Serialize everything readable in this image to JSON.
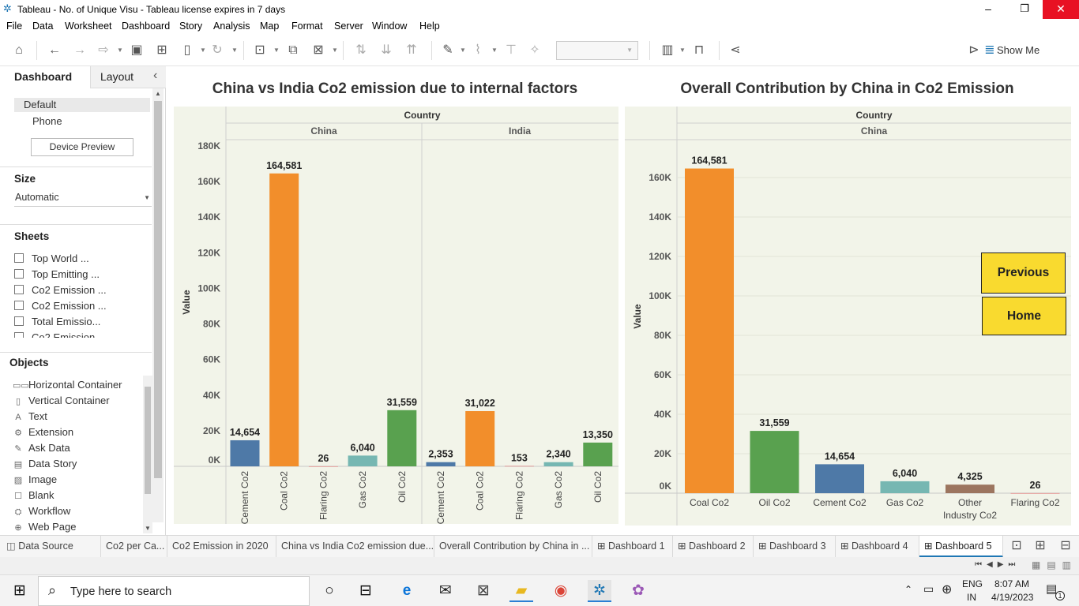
{
  "window": {
    "title": "Tableau - No. of Unique Visu - Tableau license expires in 7 days",
    "minimize": "–",
    "restore": "❐",
    "close": "✕"
  },
  "menu": [
    "File",
    "Data",
    "Worksheet",
    "Dashboard",
    "Story",
    "Analysis",
    "Map",
    "Format",
    "Server",
    "Window",
    "Help"
  ],
  "toolbar": {
    "show_me": "Show Me"
  },
  "left_pane": {
    "tab_dashboard": "Dashboard",
    "tab_layout": "Layout",
    "collapse": "‹",
    "device_default": "Default",
    "device_phone": "Phone",
    "device_preview_button": "Device Preview",
    "size_heading": "Size",
    "size_value": "Automatic",
    "sheets_heading": "Sheets",
    "sheets": [
      "Top World ...",
      "Top Emitting ...",
      "Co2 Emission ...",
      "Co2 Emission ...",
      "Total Emissio...",
      "Co2 Emission ..."
    ],
    "objects_heading": "Objects",
    "objects": [
      {
        "icon": "horizontal-container-icon",
        "glyph": "▭▭",
        "label": "Horizontal Container"
      },
      {
        "icon": "vertical-container-icon",
        "glyph": "▯",
        "label": "Vertical Container"
      },
      {
        "icon": "text-icon",
        "glyph": "A",
        "label": "Text"
      },
      {
        "icon": "extension-icon",
        "glyph": "⚙",
        "label": "Extension"
      },
      {
        "icon": "ask-data-icon",
        "glyph": "✎",
        "label": "Ask Data"
      },
      {
        "icon": "data-story-icon",
        "glyph": "▤",
        "label": "Data Story"
      },
      {
        "icon": "image-icon",
        "glyph": "▨",
        "label": "Image"
      },
      {
        "icon": "blank-icon",
        "glyph": "☐",
        "label": "Blank"
      },
      {
        "icon": "workflow-icon",
        "glyph": "⛭",
        "label": "Workflow"
      },
      {
        "icon": "web-page-icon",
        "glyph": "⊕",
        "label": "Web Page"
      }
    ]
  },
  "buttons": {
    "previous": "Previous",
    "home": "Home"
  },
  "chart_data": [
    {
      "type": "bar",
      "title": "China vs India Co2 emission due to internal factors",
      "column_header": "Country",
      "panes": [
        "China",
        "India"
      ],
      "ylabel": "Value",
      "ylim": [
        0,
        185000
      ],
      "yticks": [
        0,
        20000,
        40000,
        60000,
        80000,
        100000,
        120000,
        140000,
        160000,
        180000
      ],
      "ytick_labels": [
        "0K",
        "20K",
        "40K",
        "60K",
        "80K",
        "100K",
        "120K",
        "140K",
        "160K",
        "180K"
      ],
      "categories": [
        "Cement Co2",
        "Coal Co2",
        "Flaring Co2",
        "Gas Co2",
        "Oil Co2"
      ],
      "series": [
        {
          "values": [
            14654,
            164581,
            26,
            6040,
            31559
          ],
          "labels": [
            "14,654",
            "164,581",
            "26",
            "6,040",
            "31,559"
          ]
        },
        {
          "values": [
            2353,
            31022,
            153,
            2340,
            13350
          ],
          "labels": [
            "2,353",
            "31,022",
            "153",
            "2,340",
            "13,350"
          ]
        }
      ],
      "colors": [
        "#4e79a7",
        "#f28e2b",
        "#e15759",
        "#76b7b2",
        "#59a14f"
      ],
      "grid": false
    },
    {
      "type": "bar",
      "title": "Overall Contribution by China in Co2 Emission",
      "column_header": "Country",
      "panes": [
        "China"
      ],
      "ylabel": "Value",
      "ylim": [
        0,
        176000
      ],
      "yticks": [
        0,
        20000,
        40000,
        60000,
        80000,
        100000,
        120000,
        140000,
        160000
      ],
      "ytick_labels": [
        "0K",
        "20K",
        "40K",
        "60K",
        "80K",
        "100K",
        "120K",
        "140K",
        "160K"
      ],
      "categories": [
        "Coal Co2",
        "Oil Co2",
        "Cement Co2",
        "Gas Co2",
        "Other Industry Co2",
        "Flaring Co2"
      ],
      "category_lines": [
        [
          "Coal Co2"
        ],
        [
          "Oil Co2"
        ],
        [
          "Cement Co2"
        ],
        [
          "Gas Co2"
        ],
        [
          "Other",
          "Industry Co2"
        ],
        [
          "Flaring Co2"
        ]
      ],
      "values": [
        164581,
        31559,
        14654,
        6040,
        4325,
        26
      ],
      "labels": [
        "164,581",
        "31,559",
        "14,654",
        "6,040",
        "4,325",
        "26"
      ],
      "colors": [
        "#f28e2b",
        "#59a14f",
        "#4e79a7",
        "#76b7b2",
        "#9c755f",
        "#e15759"
      ],
      "grid": true
    }
  ],
  "bottom_tabs": [
    "Data Source",
    "Co2 per Ca...",
    "Co2 Emission in 2020",
    "China vs India Co2 emission due...",
    "Overall Contribution by China in ...",
    "Dashboard 1",
    "Dashboard 2",
    "Dashboard 3",
    "Dashboard 4",
    "Dashboard 5"
  ],
  "taskbar": {
    "search_placeholder": "Type here to search",
    "lang_top": "ENG",
    "lang_bottom": "IN",
    "time": "8:07 AM",
    "date": "4/19/2023",
    "notif_count": "1"
  }
}
